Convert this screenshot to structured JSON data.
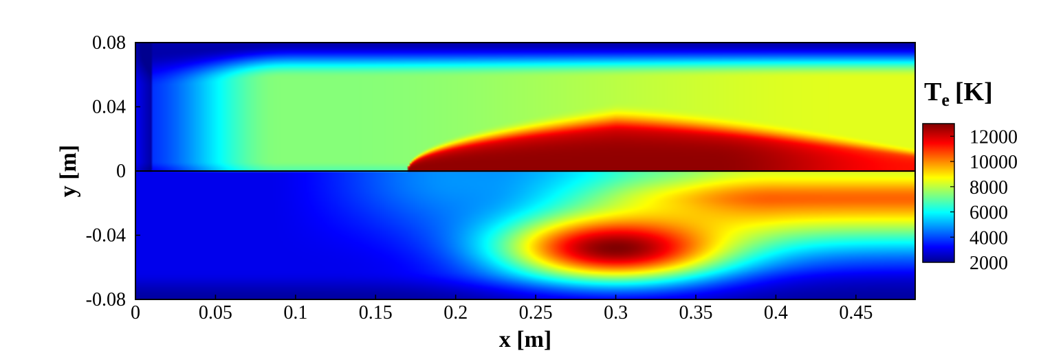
{
  "chart_data": {
    "type": "heatmap",
    "xlabel": "x [m]",
    "ylabel": "y [m]",
    "xlim": [
      0,
      0.487
    ],
    "ylim": [
      -0.08,
      0.08
    ],
    "x_ticks": [
      "0",
      "0.05",
      "0.1",
      "0.15",
      "0.2",
      "0.25",
      "0.3",
      "0.35",
      "0.4",
      "0.45"
    ],
    "x_tick_values": [
      0,
      0.05,
      0.1,
      0.15,
      0.2,
      0.25,
      0.3,
      0.35,
      0.4,
      0.45
    ],
    "y_ticks": [
      "0.08",
      "0.04",
      "0",
      "-0.04",
      "-0.08"
    ],
    "y_tick_values": [
      0.08,
      0.04,
      0,
      -0.04,
      -0.08
    ],
    "colorbar": {
      "title_main": "T",
      "title_sub": "e",
      "title_unit": "[K]",
      "range": [
        2000,
        13000
      ],
      "ticks": [
        "12000",
        "10000",
        "8000",
        "6000",
        "4000",
        "2000"
      ],
      "tick_values": [
        12000,
        10000,
        8000,
        6000,
        4000,
        2000
      ],
      "colormap": "jet"
    },
    "panels": {
      "upper": {
        "y_range": [
          0,
          0.08
        ],
        "hot_core": {
          "x_start": 0.17,
          "x_peak": 0.3,
          "x_end": 0.487,
          "y_top_max": 0.035,
          "peak_T": 12800
        },
        "background_T": 7200,
        "edge_T": 2300
      },
      "lower": {
        "y_range": [
          -0.08,
          0
        ],
        "hot_core": {
          "x_center": 0.3,
          "y_center": -0.048,
          "peak_T": 13000
        },
        "background_T": 3000,
        "edge_T": 2200
      }
    }
  }
}
